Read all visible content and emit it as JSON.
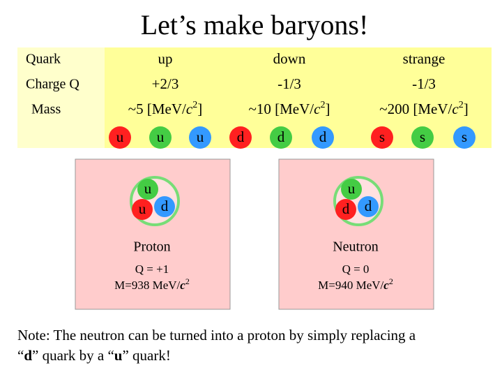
{
  "title": "Let’s make baryons!",
  "table": {
    "row_labels": [
      "Quark",
      "Charge Q",
      "Mass"
    ],
    "columns": [
      {
        "quark": "up",
        "charge": "+2/3",
        "mass": [
          "~5 [MeV/",
          "c",
          "2",
          "]"
        ],
        "quark_symbols": [
          "u",
          "u",
          "u"
        ]
      },
      {
        "quark": "down",
        "charge": "-1/3",
        "mass": [
          "~10 [MeV/",
          "c",
          "2",
          "]"
        ],
        "quark_symbols": [
          "d",
          "d",
          "d"
        ]
      },
      {
        "quark": "strange",
        "charge": "-1/3",
        "mass": [
          "~200 [MeV/",
          "c",
          "2",
          "]"
        ],
        "quark_symbols": [
          "s",
          "s",
          "s"
        ]
      }
    ]
  },
  "baryons": [
    {
      "quarks": [
        "u",
        "u",
        "d"
      ],
      "name": "Proton",
      "charge": "Q = +1",
      "mass": [
        "M=938 MeV/",
        "c",
        "2"
      ]
    },
    {
      "quarks": [
        "u",
        "d",
        "d"
      ],
      "name": "Neutron",
      "charge": "Q = 0",
      "mass": [
        "M=940 MeV/",
        "c",
        "2"
      ]
    }
  ],
  "note": {
    "lines": [
      [
        "Note: The neutron can be turned into a proton by simply replacing a"
      ],
      [
        "“",
        "d",
        "” quark by a “",
        "u",
        "” quark!"
      ]
    ]
  }
}
